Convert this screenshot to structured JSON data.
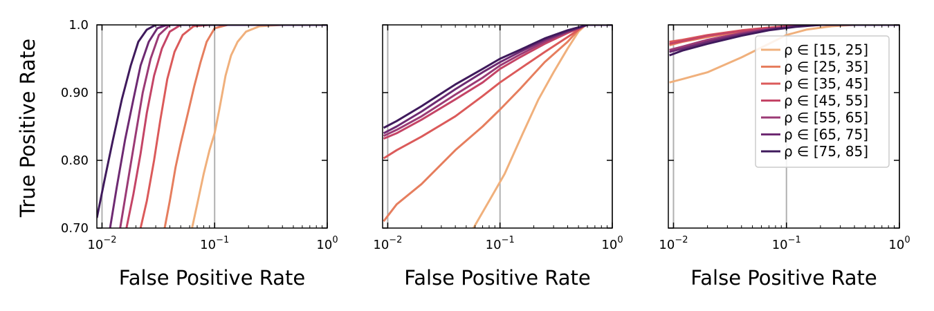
{
  "chart_data": {
    "type": "line",
    "xscale": "log",
    "xlim": [
      0.009,
      1.0
    ],
    "ylim": [
      0.7,
      1.0
    ],
    "xlabel": "False Positive Rate",
    "ylabel": "True Positive Rate",
    "x_ticks": [
      {
        "value": 0.01,
        "base": "10",
        "exp": "−2"
      },
      {
        "value": 0.1,
        "base": "10",
        "exp": "−1"
      },
      {
        "value": 1.0,
        "base": "10",
        "exp": "0"
      }
    ],
    "y_ticks": [
      {
        "value": 0.7,
        "label": "0.70"
      },
      {
        "value": 0.8,
        "label": "0.80"
      },
      {
        "value": 0.9,
        "label": "0.90"
      },
      {
        "value": 1.0,
        "label": "1.0"
      }
    ],
    "legend": {
      "location": "right",
      "entries": [
        "ρ ∈ [15, 25]",
        "ρ ∈ [25, 35]",
        "ρ ∈ [35, 45]",
        "ρ ∈ [45, 55]",
        "ρ ∈ [55, 65]",
        "ρ ∈ [65, 75]",
        "ρ ∈ [75, 85]"
      ]
    },
    "series_colors": [
      "#f0b07c",
      "#e67e5e",
      "#db5a5a",
      "#c44466",
      "#9b3a75",
      "#6e2a72",
      "#3f1a5c"
    ],
    "panels": [
      {
        "name": "panel-1",
        "series": [
          {
            "name": "ρ ∈ [15, 25]",
            "points": [
              [
                0.063,
                0.7
              ],
              [
                0.07,
                0.735
              ],
              [
                0.08,
                0.78
              ],
              [
                0.09,
                0.815
              ],
              [
                0.1,
                0.84
              ],
              [
                0.11,
                0.875
              ],
              [
                0.125,
                0.925
              ],
              [
                0.14,
                0.955
              ],
              [
                0.16,
                0.975
              ],
              [
                0.19,
                0.99
              ],
              [
                0.25,
                0.998
              ],
              [
                0.4,
                1.0
              ],
              [
                1.0,
                1.0
              ]
            ]
          },
          {
            "name": "ρ ∈ [25, 35]",
            "points": [
              [
                0.036,
                0.7
              ],
              [
                0.04,
                0.74
              ],
              [
                0.045,
                0.79
              ],
              [
                0.05,
                0.825
              ],
              [
                0.058,
                0.87
              ],
              [
                0.066,
                0.91
              ],
              [
                0.075,
                0.945
              ],
              [
                0.085,
                0.975
              ],
              [
                0.1,
                0.995
              ],
              [
                0.13,
                1.0
              ],
              [
                1.0,
                1.0
              ]
            ]
          },
          {
            "name": "ρ ∈ [35, 45]",
            "points": [
              [
                0.022,
                0.7
              ],
              [
                0.025,
                0.74
              ],
              [
                0.029,
                0.8
              ],
              [
                0.033,
                0.86
              ],
              [
                0.038,
                0.92
              ],
              [
                0.044,
                0.96
              ],
              [
                0.052,
                0.985
              ],
              [
                0.065,
                0.998
              ],
              [
                0.09,
                1.0
              ],
              [
                1.0,
                1.0
              ]
            ]
          },
          {
            "name": "ρ ∈ [45, 55]",
            "points": [
              [
                0.0165,
                0.7
              ],
              [
                0.019,
                0.75
              ],
              [
                0.022,
                0.81
              ],
              [
                0.025,
                0.87
              ],
              [
                0.029,
                0.925
              ],
              [
                0.034,
                0.965
              ],
              [
                0.04,
                0.99
              ],
              [
                0.05,
                1.0
              ],
              [
                1.0,
                1.0
              ]
            ]
          },
          {
            "name": "ρ ∈ [55, 65]",
            "points": [
              [
                0.0145,
                0.7
              ],
              [
                0.017,
                0.77
              ],
              [
                0.02,
                0.84
              ],
              [
                0.023,
                0.9
              ],
              [
                0.027,
                0.95
              ],
              [
                0.032,
                0.985
              ],
              [
                0.04,
                1.0
              ],
              [
                1.0,
                1.0
              ]
            ]
          },
          {
            "name": "ρ ∈ [65, 75]",
            "points": [
              [
                0.0118,
                0.7
              ],
              [
                0.0135,
                0.76
              ],
              [
                0.016,
                0.83
              ],
              [
                0.019,
                0.89
              ],
              [
                0.022,
                0.94
              ],
              [
                0.026,
                0.975
              ],
              [
                0.031,
                0.995
              ],
              [
                0.038,
                1.0
              ],
              [
                1.0,
                1.0
              ]
            ]
          },
          {
            "name": "ρ ∈ [75, 85]",
            "points": [
              [
                0.009,
                0.715
              ],
              [
                0.0105,
                0.77
              ],
              [
                0.0125,
                0.83
              ],
              [
                0.015,
                0.89
              ],
              [
                0.018,
                0.94
              ],
              [
                0.021,
                0.975
              ],
              [
                0.025,
                0.993
              ],
              [
                0.03,
                1.0
              ],
              [
                1.0,
                1.0
              ]
            ]
          }
        ]
      },
      {
        "name": "panel-2",
        "series": [
          {
            "name": "ρ ∈ [15, 25]",
            "points": [
              [
                0.058,
                0.7
              ],
              [
                0.08,
                0.74
              ],
              [
                0.11,
                0.78
              ],
              [
                0.16,
                0.84
              ],
              [
                0.22,
                0.89
              ],
              [
                0.3,
                0.93
              ],
              [
                0.4,
                0.965
              ],
              [
                0.5,
                0.99
              ],
              [
                0.58,
                1.0
              ],
              [
                1.0,
                1.0
              ]
            ]
          },
          {
            "name": "ρ ∈ [25, 35]",
            "points": [
              [
                0.0092,
                0.71
              ],
              [
                0.012,
                0.735
              ],
              [
                0.02,
                0.765
              ],
              [
                0.04,
                0.815
              ],
              [
                0.07,
                0.85
              ],
              [
                0.1,
                0.875
              ],
              [
                0.15,
                0.905
              ],
              [
                0.25,
                0.945
              ],
              [
                0.4,
                0.975
              ],
              [
                0.55,
                1.0
              ],
              [
                1.0,
                1.0
              ]
            ]
          },
          {
            "name": "ρ ∈ [35, 45]",
            "points": [
              [
                0.0092,
                0.803
              ],
              [
                0.012,
                0.815
              ],
              [
                0.02,
                0.835
              ],
              [
                0.04,
                0.865
              ],
              [
                0.07,
                0.895
              ],
              [
                0.1,
                0.915
              ],
              [
                0.15,
                0.935
              ],
              [
                0.25,
                0.96
              ],
              [
                0.4,
                0.982
              ],
              [
                0.58,
                1.0
              ],
              [
                1.0,
                1.0
              ]
            ]
          },
          {
            "name": "ρ ∈ [45, 55]",
            "points": [
              [
                0.0092,
                0.832
              ],
              [
                0.012,
                0.84
              ],
              [
                0.02,
                0.86
              ],
              [
                0.04,
                0.89
              ],
              [
                0.07,
                0.915
              ],
              [
                0.1,
                0.935
              ],
              [
                0.15,
                0.952
              ],
              [
                0.25,
                0.972
              ],
              [
                0.4,
                0.988
              ],
              [
                0.6,
                1.0
              ],
              [
                1.0,
                1.0
              ]
            ]
          },
          {
            "name": "ρ ∈ [55, 65]",
            "points": [
              [
                0.0092,
                0.836
              ],
              [
                0.012,
                0.845
              ],
              [
                0.02,
                0.865
              ],
              [
                0.04,
                0.897
              ],
              [
                0.07,
                0.922
              ],
              [
                0.1,
                0.94
              ],
              [
                0.15,
                0.956
              ],
              [
                0.25,
                0.975
              ],
              [
                0.4,
                0.99
              ],
              [
                0.6,
                1.0
              ],
              [
                1.0,
                1.0
              ]
            ]
          },
          {
            "name": "ρ ∈ [65, 75]",
            "points": [
              [
                0.0092,
                0.84
              ],
              [
                0.012,
                0.85
              ],
              [
                0.02,
                0.872
              ],
              [
                0.04,
                0.905
              ],
              [
                0.07,
                0.93
              ],
              [
                0.1,
                0.945
              ],
              [
                0.15,
                0.96
              ],
              [
                0.25,
                0.978
              ],
              [
                0.4,
                0.99
              ],
              [
                0.6,
                1.0
              ],
              [
                1.0,
                1.0
              ]
            ]
          },
          {
            "name": "ρ ∈ [75, 85]",
            "points": [
              [
                0.0092,
                0.848
              ],
              [
                0.012,
                0.858
              ],
              [
                0.02,
                0.88
              ],
              [
                0.04,
                0.912
              ],
              [
                0.07,
                0.935
              ],
              [
                0.1,
                0.95
              ],
              [
                0.15,
                0.963
              ],
              [
                0.25,
                0.98
              ],
              [
                0.4,
                0.992
              ],
              [
                0.6,
                1.0
              ],
              [
                1.0,
                1.0
              ]
            ]
          }
        ]
      },
      {
        "name": "panel-3",
        "series": [
          {
            "name": "ρ ∈ [15, 25]",
            "points": [
              [
                0.0092,
                0.915
              ],
              [
                0.012,
                0.92
              ],
              [
                0.02,
                0.93
              ],
              [
                0.04,
                0.952
              ],
              [
                0.07,
                0.972
              ],
              [
                0.1,
                0.985
              ],
              [
                0.15,
                0.993
              ],
              [
                0.25,
                0.998
              ],
              [
                0.4,
                1.0
              ],
              [
                1.0,
                1.0
              ]
            ]
          },
          {
            "name": "ρ ∈ [25, 35]",
            "points": [
              [
                0.0092,
                0.97
              ],
              [
                0.012,
                0.975
              ],
              [
                0.02,
                0.982
              ],
              [
                0.04,
                0.99
              ],
              [
                0.07,
                0.995
              ],
              [
                0.1,
                0.998
              ],
              [
                0.2,
                1.0
              ],
              [
                1.0,
                1.0
              ]
            ]
          },
          {
            "name": "ρ ∈ [35, 45]",
            "points": [
              [
                0.0092,
                0.975
              ],
              [
                0.012,
                0.978
              ],
              [
                0.02,
                0.985
              ],
              [
                0.04,
                0.992
              ],
              [
                0.07,
                0.996
              ],
              [
                0.12,
                0.999
              ],
              [
                0.2,
                1.0
              ],
              [
                1.0,
                1.0
              ]
            ]
          },
          {
            "name": "ρ ∈ [45, 55]",
            "points": [
              [
                0.0092,
                0.972
              ],
              [
                0.012,
                0.976
              ],
              [
                0.02,
                0.984
              ],
              [
                0.04,
                0.991
              ],
              [
                0.07,
                0.995
              ],
              [
                0.12,
                0.999
              ],
              [
                0.2,
                1.0
              ],
              [
                1.0,
                1.0
              ]
            ]
          },
          {
            "name": "ρ ∈ [55, 65]",
            "points": [
              [
                0.0092,
                0.963
              ],
              [
                0.012,
                0.968
              ],
              [
                0.02,
                0.978
              ],
              [
                0.04,
                0.988
              ],
              [
                0.07,
                0.994
              ],
              [
                0.12,
                0.998
              ],
              [
                0.2,
                1.0
              ],
              [
                1.0,
                1.0
              ]
            ]
          },
          {
            "name": "ρ ∈ [65, 75]",
            "points": [
              [
                0.0092,
                0.96
              ],
              [
                0.012,
                0.965
              ],
              [
                0.02,
                0.975
              ],
              [
                0.04,
                0.986
              ],
              [
                0.07,
                0.993
              ],
              [
                0.12,
                0.998
              ],
              [
                0.2,
                1.0
              ],
              [
                1.0,
                1.0
              ]
            ]
          },
          {
            "name": "ρ ∈ [75, 85]",
            "points": [
              [
                0.0092,
                0.955
              ],
              [
                0.012,
                0.962
              ],
              [
                0.02,
                0.972
              ],
              [
                0.04,
                0.984
              ],
              [
                0.07,
                0.992
              ],
              [
                0.12,
                0.997
              ],
              [
                0.2,
                1.0
              ],
              [
                1.0,
                1.0
              ]
            ]
          }
        ]
      }
    ]
  }
}
